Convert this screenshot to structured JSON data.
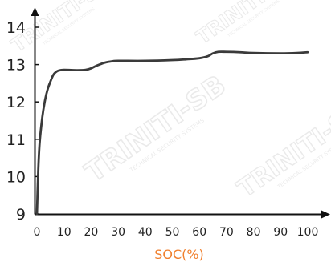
{
  "chart_data": {
    "type": "line",
    "title": "",
    "xlabel": "SOC(%)",
    "ylabel": "",
    "xlim": [
      0,
      100
    ],
    "ylim": [
      9,
      14
    ],
    "xticks": [
      0,
      10,
      20,
      30,
      40,
      50,
      60,
      70,
      80,
      90,
      100
    ],
    "yticks": [
      9,
      10,
      11,
      12,
      13,
      14
    ],
    "grid": false,
    "series": [
      {
        "points": [
          [
            0,
            9.0
          ],
          [
            0.5,
            10.2
          ],
          [
            1,
            10.9
          ],
          [
            2,
            11.6
          ],
          [
            3,
            12.05
          ],
          [
            4,
            12.35
          ],
          [
            5,
            12.55
          ],
          [
            6,
            12.72
          ],
          [
            7,
            12.8
          ],
          [
            8,
            12.84
          ],
          [
            10,
            12.86
          ],
          [
            15,
            12.85
          ],
          [
            18,
            12.86
          ],
          [
            20,
            12.9
          ],
          [
            22,
            12.97
          ],
          [
            25,
            13.05
          ],
          [
            28,
            13.09
          ],
          [
            30,
            13.1
          ],
          [
            40,
            13.1
          ],
          [
            50,
            13.12
          ],
          [
            55,
            13.14
          ],
          [
            60,
            13.17
          ],
          [
            63,
            13.22
          ],
          [
            65,
            13.3
          ],
          [
            67,
            13.34
          ],
          [
            70,
            13.34
          ],
          [
            75,
            13.33
          ],
          [
            80,
            13.31
          ],
          [
            90,
            13.3
          ],
          [
            96,
            13.31
          ],
          [
            100,
            13.33
          ]
        ],
        "color": "#3a3a3a"
      }
    ],
    "colors": {
      "axis": "#111111",
      "xlabel": "#f07f2d",
      "line": "#3a3a3a",
      "watermark": "#d9d9d9"
    },
    "watermark": "TRINITI-SB",
    "watermark_sub": "TECHNICAL SECURITY SYSTEMS"
  }
}
